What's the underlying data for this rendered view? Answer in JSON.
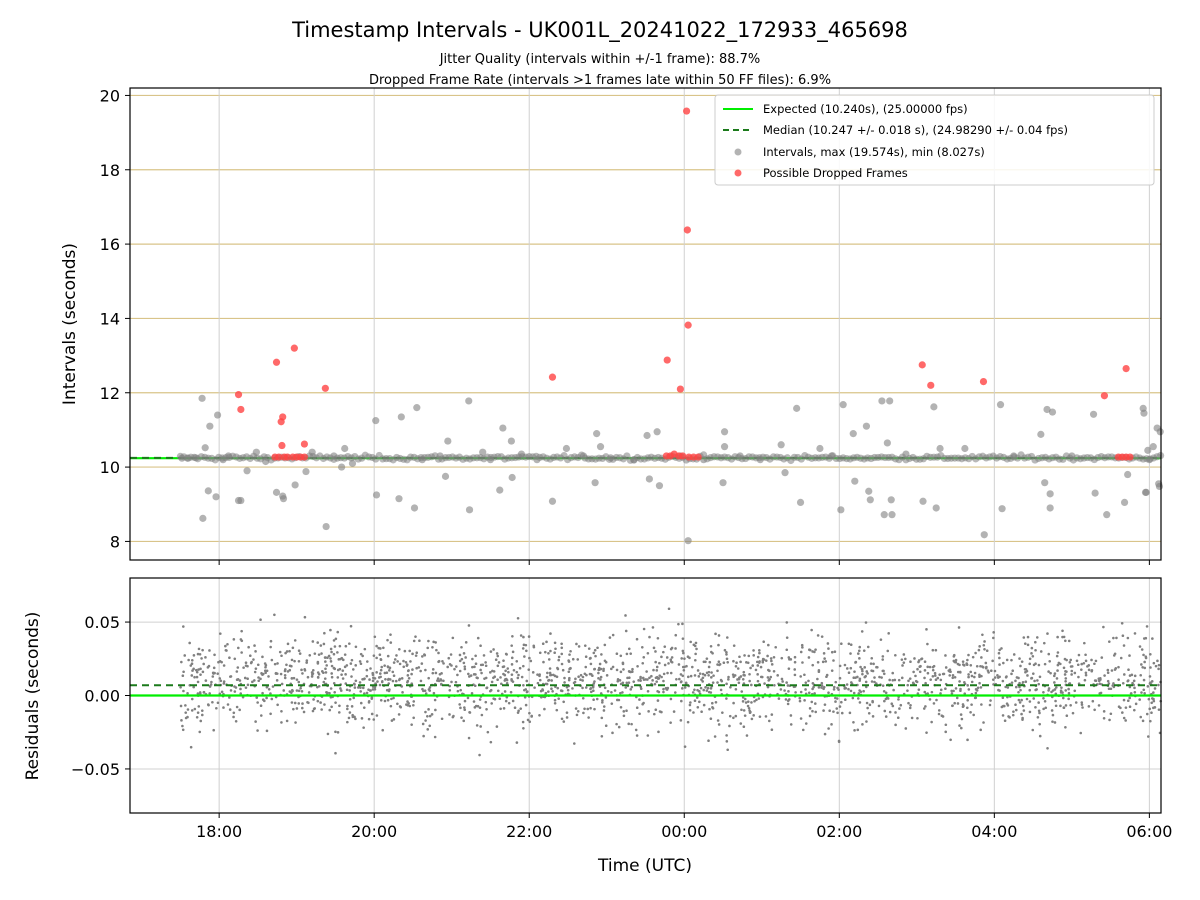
{
  "chart_data": {
    "type": "scatter",
    "title": "Timestamp Intervals - UK001L_20241022_172933_465698",
    "subtitle_lines": [
      "Jitter Quality (intervals within +/-1 frame): 88.7%",
      "Dropped Frame Rate (intervals >1 frames late within 50 FF files): 6.9%"
    ],
    "xlabel": "Time (UTC)",
    "x_ticks": [
      "18:00",
      "20:00",
      "22:00",
      "00:00",
      "02:00",
      "04:00",
      "06:00"
    ],
    "x_range_hours": [
      16.85,
      30.15
    ],
    "panels": [
      {
        "ylabel": "Intervals (seconds)",
        "ylim": [
          7.5,
          20.2
        ],
        "y_ticks": [
          "8",
          "10",
          "12",
          "14",
          "16",
          "18",
          "20"
        ],
        "grid": true,
        "legend_position": "top-right",
        "legend": [
          "Expected (10.240s), (25.00000 fps)",
          "Median (10.247 +/- 0.018 s), (24.98290 +/- 0.04 fps)",
          "Intervals, max (19.574s), min (8.027s)",
          "Possible Dropped Frames"
        ],
        "expected_value": 10.24,
        "median_value": 10.247,
        "series": [
          {
            "kind": "intervals",
            "color": "#808080",
            "points": [
              [
                17.52,
                10.24
              ],
              [
                17.6,
                10.24
              ],
              [
                17.7,
                10.25
              ],
              [
                17.78,
                11.85
              ],
              [
                17.79,
                8.62
              ],
              [
                17.82,
                10.52
              ],
              [
                17.86,
                9.36
              ],
              [
                17.88,
                11.1
              ],
              [
                17.96,
                9.2
              ],
              [
                17.98,
                11.4
              ],
              [
                18.05,
                10.2
              ],
              [
                18.12,
                10.3
              ],
              [
                18.25,
                9.1
              ],
              [
                18.28,
                9.1
              ],
              [
                18.36,
                9.9
              ],
              [
                18.48,
                10.4
              ],
              [
                18.6,
                10.15
              ],
              [
                18.74,
                9.32
              ],
              [
                18.82,
                9.22
              ],
              [
                18.83,
                9.15
              ],
              [
                18.98,
                9.52
              ],
              [
                19.12,
                9.88
              ],
              [
                19.2,
                10.4
              ],
              [
                19.38,
                8.4
              ],
              [
                19.48,
                10.3
              ],
              [
                19.58,
                10.0
              ],
              [
                19.62,
                10.5
              ],
              [
                19.72,
                10.1
              ],
              [
                20.02,
                11.25
              ],
              [
                20.03,
                9.25
              ],
              [
                20.32,
                9.15
              ],
              [
                20.35,
                11.35
              ],
              [
                20.52,
                8.9
              ],
              [
                20.55,
                11.6
              ],
              [
                20.62,
                10.2
              ],
              [
                20.85,
                10.3
              ],
              [
                20.92,
                9.75
              ],
              [
                20.95,
                10.7
              ],
              [
                21.22,
                11.78
              ],
              [
                21.23,
                8.85
              ],
              [
                21.4,
                10.4
              ],
              [
                21.5,
                10.2
              ],
              [
                21.62,
                9.38
              ],
              [
                21.66,
                11.05
              ],
              [
                21.77,
                10.7
              ],
              [
                21.78,
                9.72
              ],
              [
                21.9,
                10.35
              ],
              [
                22.1,
                10.2
              ],
              [
                22.3,
                9.08
              ],
              [
                22.48,
                10.5
              ],
              [
                22.7,
                10.3
              ],
              [
                22.85,
                9.58
              ],
              [
                22.87,
                10.9
              ],
              [
                22.92,
                10.55
              ],
              [
                23.05,
                10.25
              ],
              [
                23.35,
                10.2
              ],
              [
                23.52,
                10.85
              ],
              [
                23.55,
                9.68
              ],
              [
                23.65,
                10.95
              ],
              [
                23.68,
                9.5
              ],
              [
                23.95,
                10.3
              ],
              [
                24.05,
                8.02
              ],
              [
                24.25,
                10.2
              ],
              [
                24.5,
                9.58
              ],
              [
                24.52,
                10.55
              ],
              [
                24.52,
                10.95
              ],
              [
                24.72,
                10.3
              ],
              [
                24.98,
                10.2
              ],
              [
                25.25,
                10.6
              ],
              [
                25.3,
                9.85
              ],
              [
                25.45,
                11.58
              ],
              [
                25.5,
                9.05
              ],
              [
                25.75,
                10.5
              ],
              [
                25.9,
                10.3
              ],
              [
                26.02,
                8.85
              ],
              [
                26.05,
                11.68
              ],
              [
                26.18,
                10.9
              ],
              [
                26.2,
                9.62
              ],
              [
                26.35,
                11.1
              ],
              [
                26.38,
                9.35
              ],
              [
                26.4,
                9.12
              ],
              [
                26.55,
                11.78
              ],
              [
                26.58,
                8.72
              ],
              [
                26.62,
                10.65
              ],
              [
                26.65,
                11.78
              ],
              [
                26.67,
                9.12
              ],
              [
                26.68,
                8.72
              ],
              [
                26.86,
                10.35
              ],
              [
                27.08,
                9.08
              ],
              [
                27.22,
                11.62
              ],
              [
                27.25,
                8.9
              ],
              [
                27.3,
                10.5
              ],
              [
                27.62,
                10.5
              ],
              [
                27.87,
                8.18
              ],
              [
                28.08,
                11.68
              ],
              [
                28.1,
                8.88
              ],
              [
                28.25,
                10.3
              ],
              [
                28.6,
                10.88
              ],
              [
                28.65,
                9.58
              ],
              [
                28.68,
                11.55
              ],
              [
                28.72,
                9.28
              ],
              [
                28.75,
                11.48
              ],
              [
                28.72,
                8.9
              ],
              [
                29.0,
                10.3
              ],
              [
                29.28,
                11.42
              ],
              [
                29.3,
                9.3
              ],
              [
                29.45,
                8.72
              ],
              [
                29.68,
                9.05
              ],
              [
                29.72,
                9.8
              ],
              [
                29.92,
                11.58
              ],
              [
                29.93,
                11.45
              ],
              [
                29.95,
                9.32
              ],
              [
                29.96,
                9.32
              ],
              [
                29.98,
                10.45
              ],
              [
                30.0,
                10.2
              ],
              [
                30.05,
                10.55
              ],
              [
                30.1,
                11.05
              ],
              [
                30.12,
                9.55
              ],
              [
                30.13,
                9.48
              ],
              [
                30.14,
                10.95
              ]
            ]
          },
          {
            "kind": "dropped",
            "color": "#ff0000",
            "points": [
              [
                18.25,
                11.95
              ],
              [
                18.28,
                11.55
              ],
              [
                18.74,
                12.82
              ],
              [
                18.8,
                11.22
              ],
              [
                18.82,
                11.35
              ],
              [
                18.81,
                10.58
              ],
              [
                18.97,
                13.2
              ],
              [
                19.1,
                10.62
              ],
              [
                19.37,
                12.12
              ],
              [
                22.3,
                12.42
              ],
              [
                23.78,
                12.88
              ],
              [
                23.95,
                12.1
              ],
              [
                24.03,
                19.58
              ],
              [
                24.04,
                16.38
              ],
              [
                24.05,
                13.82
              ],
              [
                27.07,
                12.75
              ],
              [
                27.18,
                12.2
              ],
              [
                27.86,
                12.3
              ],
              [
                29.42,
                11.92
              ],
              [
                29.7,
                12.65
              ],
              [
                18.72,
                10.27
              ],
              [
                18.77,
                10.27
              ],
              [
                18.84,
                10.27
              ],
              [
                18.88,
                10.27
              ],
              [
                18.95,
                10.27
              ],
              [
                19.0,
                10.27
              ],
              [
                19.05,
                10.27
              ],
              [
                19.1,
                10.27
              ],
              [
                23.77,
                10.3
              ],
              [
                23.82,
                10.3
              ],
              [
                23.87,
                10.35
              ],
              [
                23.93,
                10.3
              ],
              [
                23.98,
                10.3
              ],
              [
                24.06,
                10.27
              ],
              [
                24.12,
                10.27
              ],
              [
                24.18,
                10.27
              ],
              [
                29.6,
                10.27
              ],
              [
                29.65,
                10.27
              ],
              [
                29.7,
                10.27
              ],
              [
                29.75,
                10.27
              ]
            ]
          }
        ]
      },
      {
        "ylabel": "Residuals (seconds)",
        "ylim": [
          -0.08,
          0.08
        ],
        "y_ticks": [
          "0.05",
          "0.00",
          "−0.05"
        ],
        "grid": true,
        "expected_value": 0.0,
        "median_value": 0.007,
        "series": [
          {
            "kind": "residuals",
            "color": "#808080",
            "x_range_hours": [
              17.5,
              30.15
            ],
            "center": 0.01,
            "spread": 0.022,
            "count": 2200
          }
        ]
      }
    ],
    "colors": {
      "expected_line": "#00ee00",
      "median_line": "#1b7a1b",
      "upper_grid": "#d9c48a",
      "grid": "#d0d0d0",
      "interval_point": "#808080",
      "dropped_point": "#ff4444"
    }
  }
}
